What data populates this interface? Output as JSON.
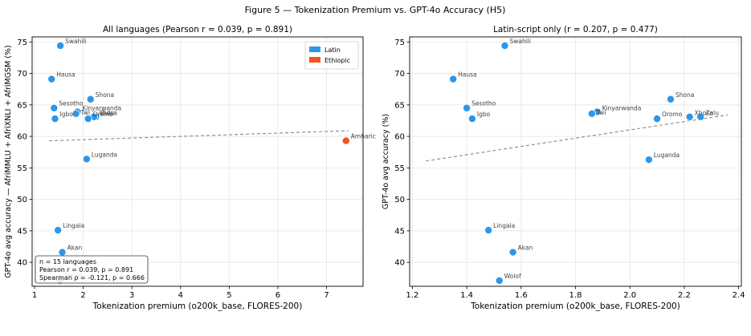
{
  "figure": {
    "suptitle": "Figure 5 — Tokenization Premium vs. GPT-4o Accuracy (H5)"
  },
  "chart_data": [
    {
      "type": "scatter",
      "title": "All languages  (Pearson r = 0.039, p = 0.891)",
      "xlabel": "Tokenization premium (o200k_base, FLORES-200)",
      "ylabel": "GPT-4o avg accuracy — AfriMMLU + AfriXNLI + AfriMGSM (%)",
      "xlim": [
        0.95,
        7.75
      ],
      "ylim": [
        36.2,
        75.8
      ],
      "xticks": [
        1,
        2,
        3,
        4,
        5,
        6,
        7
      ],
      "xtick_labels": [
        "1",
        "2",
        "3",
        "4",
        "5",
        "6",
        "7"
      ],
      "yticks": [
        40,
        45,
        50,
        55,
        60,
        65,
        70,
        75
      ],
      "ytick_labels": [
        "40",
        "45",
        "50",
        "55",
        "60",
        "65",
        "70",
        "75"
      ],
      "grid": true,
      "legend_position": "top-right",
      "legend": [
        {
          "name": "Latin",
          "color": "#2e96e8"
        },
        {
          "name": "Ethiopic",
          "color": "#f4511e"
        }
      ],
      "trendline": {
        "x": [
          1.3,
          7.45
        ],
        "y": [
          59.3,
          60.9
        ],
        "color": "#888888"
      },
      "points": [
        {
          "label": "Swahili",
          "x": 1.53,
          "y": 74.4,
          "script": "Latin"
        },
        {
          "label": "Hausa",
          "x": 1.35,
          "y": 69.1,
          "script": "Latin"
        },
        {
          "label": "Shona",
          "x": 2.15,
          "y": 65.9,
          "script": "Latin"
        },
        {
          "label": "Sesotho",
          "x": 1.4,
          "y": 64.5,
          "script": "Latin"
        },
        {
          "label": "Kinyarwanda",
          "x": 1.88,
          "y": 63.9,
          "script": "Latin"
        },
        {
          "label": "Twi",
          "x": 1.85,
          "y": 63.6,
          "script": "Latin"
        },
        {
          "label": "Zulu",
          "x": 2.26,
          "y": 63.1,
          "script": "Latin"
        },
        {
          "label": "Xhosa",
          "x": 2.22,
          "y": 63.1,
          "script": "Latin"
        },
        {
          "label": "Igbo",
          "x": 1.42,
          "y": 62.8,
          "script": "Latin"
        },
        {
          "label": "Oromo",
          "x": 2.1,
          "y": 62.8,
          "script": "Latin"
        },
        {
          "label": "Amharic",
          "x": 7.4,
          "y": 59.3,
          "script": "Ethiopic"
        },
        {
          "label": "Luganda",
          "x": 2.07,
          "y": 56.4,
          "script": "Latin"
        },
        {
          "label": "Lingala",
          "x": 1.48,
          "y": 45.1,
          "script": "Latin"
        },
        {
          "label": "Akan",
          "x": 1.57,
          "y": 41.6,
          "script": "Latin"
        },
        {
          "label": "Wolof",
          "x": 1.52,
          "y": 37.1,
          "script": "Latin"
        }
      ],
      "stats_box": [
        "n = 15 languages",
        "Pearson r = 0.039, p = 0.891",
        "Spearman ρ = -0.121, p = 0.666"
      ]
    },
    {
      "type": "scatter",
      "title": "Latin-script only (r = 0.207, p = 0.477)",
      "xlabel": "Tokenization premium (o200k_base, FLORES-200)",
      "ylabel": "GPT-4o avg accuracy (%)",
      "xlim": [
        1.19,
        2.41
      ],
      "ylim": [
        36.2,
        75.8
      ],
      "xticks": [
        1.2,
        1.4,
        1.6,
        1.8,
        2.0,
        2.2,
        2.4
      ],
      "xtick_labels": [
        "1.2",
        "1.4",
        "1.6",
        "1.8",
        "2.0",
        "2.2",
        "2.4"
      ],
      "yticks": [
        40,
        45,
        50,
        55,
        60,
        65,
        70,
        75
      ],
      "ytick_labels": [
        "40",
        "45",
        "50",
        "55",
        "60",
        "65",
        "70",
        "75"
      ],
      "grid": true,
      "trendline": {
        "x": [
          1.25,
          2.36
        ],
        "y": [
          56.1,
          63.4
        ],
        "color": "#888888"
      },
      "points": [
        {
          "label": "Swahili",
          "x": 1.54,
          "y": 74.4,
          "script": "Latin"
        },
        {
          "label": "Hausa",
          "x": 1.35,
          "y": 69.1,
          "script": "Latin"
        },
        {
          "label": "Shona",
          "x": 2.15,
          "y": 65.9,
          "script": "Latin"
        },
        {
          "label": "Sesotho",
          "x": 1.4,
          "y": 64.5,
          "script": "Latin"
        },
        {
          "label": "Kinyarwanda",
          "x": 1.88,
          "y": 63.9,
          "script": "Latin"
        },
        {
          "label": "Twi",
          "x": 1.86,
          "y": 63.6,
          "script": "Latin"
        },
        {
          "label": "Zulu",
          "x": 2.26,
          "y": 63.1,
          "script": "Latin"
        },
        {
          "label": "Xhosa",
          "x": 2.22,
          "y": 63.1,
          "script": "Latin"
        },
        {
          "label": "Igbo",
          "x": 1.42,
          "y": 62.8,
          "script": "Latin"
        },
        {
          "label": "Oromo",
          "x": 2.1,
          "y": 62.8,
          "script": "Latin"
        },
        {
          "label": "Luganda",
          "x": 2.07,
          "y": 56.3,
          "script": "Latin"
        },
        {
          "label": "Lingala",
          "x": 1.48,
          "y": 45.1,
          "script": "Latin"
        },
        {
          "label": "Akan",
          "x": 1.57,
          "y": 41.6,
          "script": "Latin"
        },
        {
          "label": "Wolof",
          "x": 1.52,
          "y": 37.1,
          "script": "Latin"
        }
      ]
    }
  ]
}
